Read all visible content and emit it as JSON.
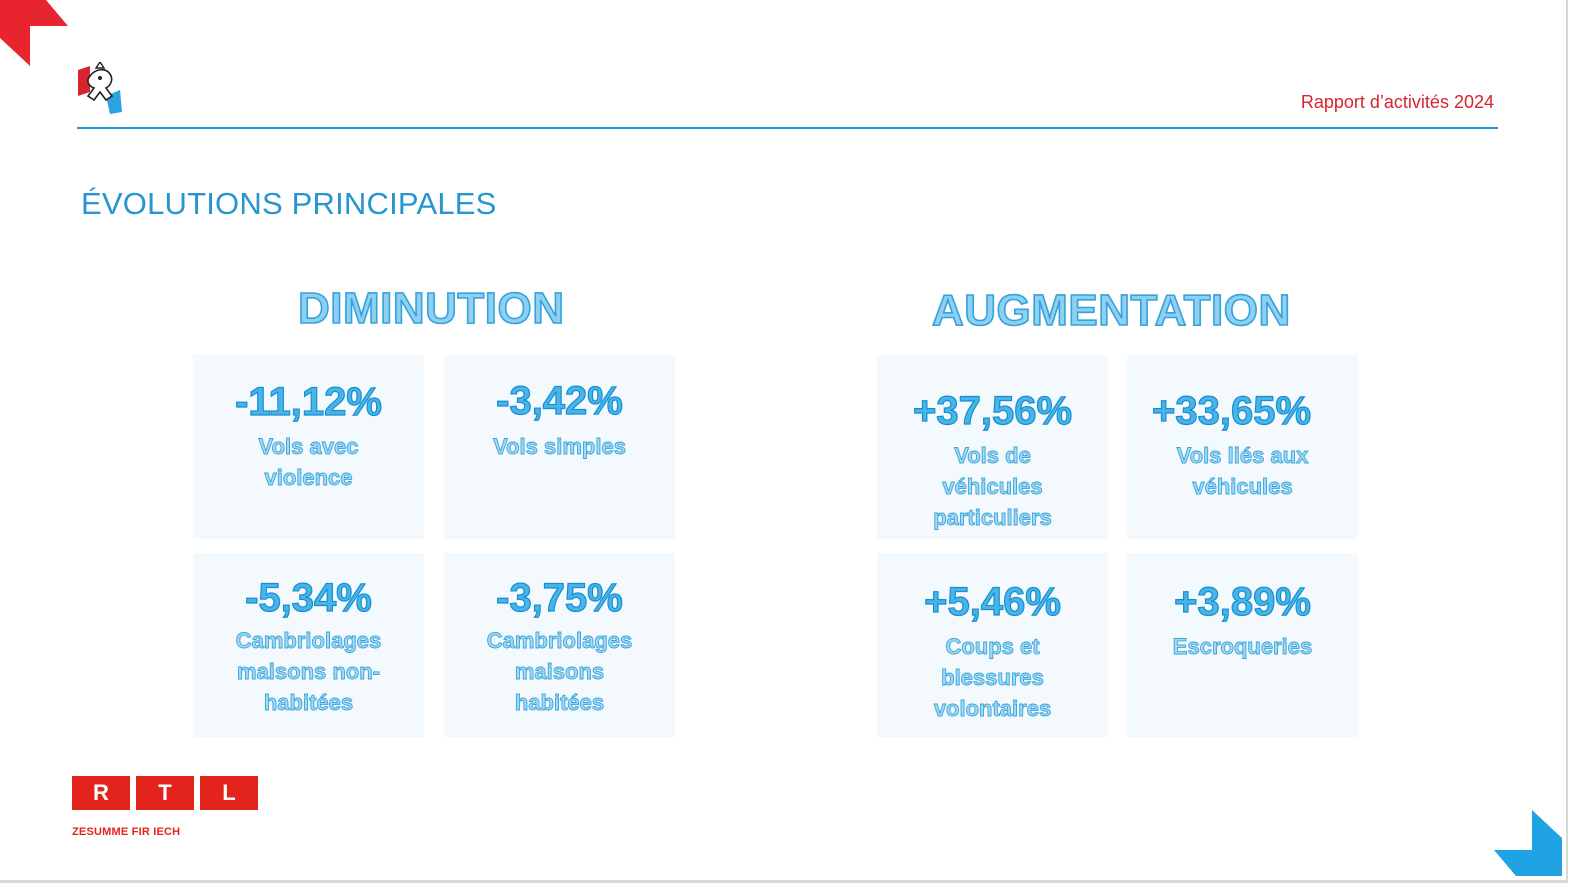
{
  "header": {
    "report_title": "Rapport d’activités 2024"
  },
  "section_title": "ÉVOLUTIONS PRINCIPALES",
  "groups": [
    {
      "heading": "DIMINUTION",
      "items": [
        {
          "value": "-11,12%",
          "label": "Vols avec violence"
        },
        {
          "value": "-3,42%",
          "label": "Vols simples"
        },
        {
          "value": "-5,34%",
          "label": "Cambriolages maisons non-habitées"
        },
        {
          "value": "-3,75%",
          "label": "Cambriolages maisons habitées"
        }
      ]
    },
    {
      "heading": "AUGMENTATION",
      "items": [
        {
          "value": "+37,56%",
          "label": "Vols de véhicules particuliers"
        },
        {
          "value": "+33,65%",
          "label": "Vols liés aux véhicules"
        },
        {
          "value": "+5,46%",
          "label": "Coups et blessures volontaires"
        },
        {
          "value": "+3,89%",
          "label": "Escroqueries"
        }
      ]
    }
  ],
  "footer": {
    "logo_letters": [
      "R",
      "T",
      "L"
    ],
    "tagline": "ZESUMME FIR IECH"
  },
  "colors": {
    "accent_blue": "#1f97d4",
    "brand_red": "#e2241d",
    "card_bg": "#f3f9fd"
  },
  "icons": [
    "crest-logo-icon",
    "corner-ribbon-red-icon",
    "corner-ribbon-blue-icon"
  ]
}
